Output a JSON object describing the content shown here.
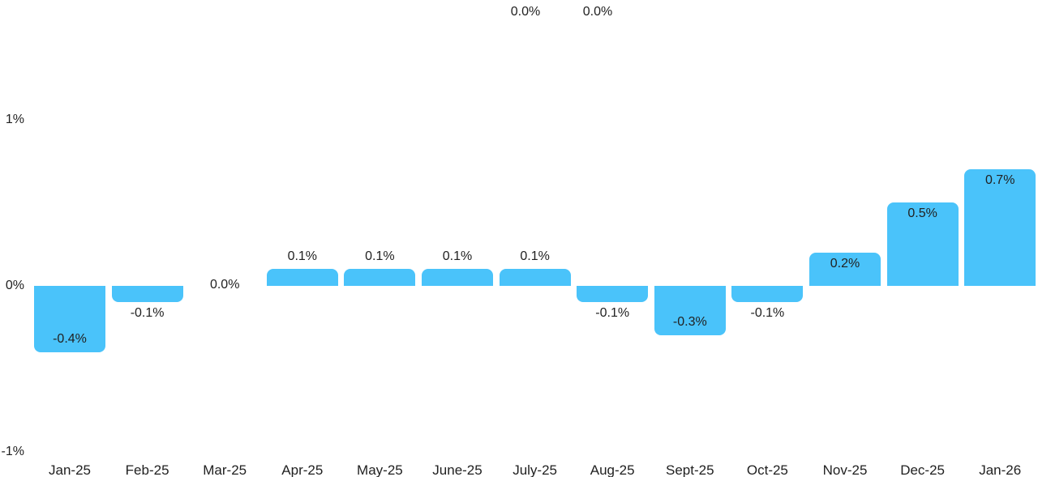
{
  "chart_data": {
    "type": "bar",
    "title": "",
    "categories": [
      "Jan-25",
      "Feb-25",
      "Mar-25",
      "Apr-25",
      "May-25",
      "June-25",
      "July-25",
      "Aug-25",
      "Sept-25",
      "Oct-25",
      "Nov-25",
      "Dec-25",
      "Jan-26"
    ],
    "values": [
      -0.4,
      -0.1,
      0,
      0.1,
      0.1,
      0.1,
      0.1,
      -0.1,
      -0.3,
      -0.1,
      0.2,
      0.5,
      0.7
    ],
    "labels": [
      "-0.4%",
      "-0.1%",
      "0.0%",
      "0.1%",
      "0.1%",
      "0.1%",
      "0.1%",
      "-0.1%",
      "-0.3%",
      "-0.1%",
      "0.2%",
      "0.5%",
      "0.7%"
    ],
    "xlabel": "",
    "ylabel": "",
    "ylim": [
      -1,
      1
    ],
    "grid": false,
    "legend_position": "none",
    "y_ticks": [
      {
        "value": 1,
        "label": "1%"
      },
      {
        "value": 0,
        "label": "0%"
      },
      {
        "value": -1,
        "label": "-1%"
      }
    ],
    "extra_labels": [
      {
        "text": "0.0%",
        "x": 648,
        "y": 15
      },
      {
        "text": "0.0%",
        "x": 737,
        "y": 15
      }
    ],
    "bar_color": "#4AC3FA",
    "text_color": "#212121",
    "background_color": "#FFFFFF"
  }
}
